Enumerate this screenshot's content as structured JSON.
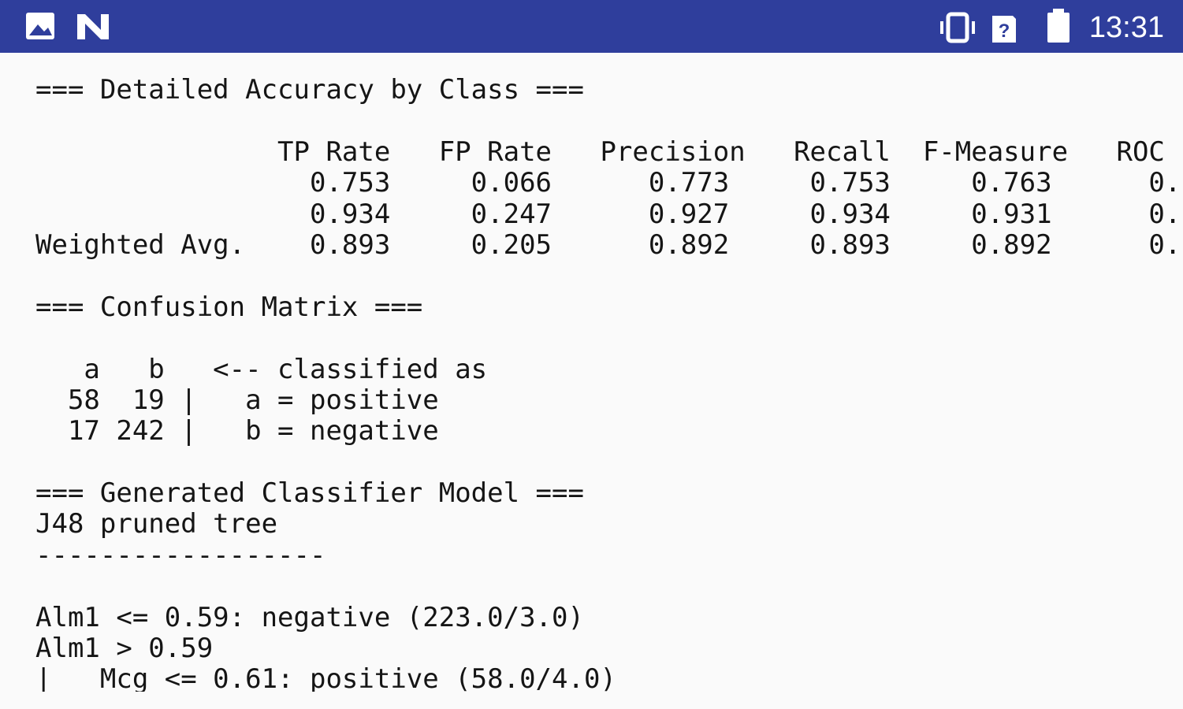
{
  "status_bar": {
    "time": "13:31"
  },
  "accuracy": {
    "title": "=== Detailed Accuracy by Class ===",
    "header": "               TP Rate   FP Rate   Precision   Recall  F-Measure   ROC",
    "rows": [
      "                 0.753     0.066      0.773     0.753     0.763      0.",
      "                 0.934     0.247      0.927     0.934     0.931      0.",
      "Weighted Avg.    0.893     0.205      0.892     0.893     0.892      0."
    ]
  },
  "confusion": {
    "title": "=== Confusion Matrix ===",
    "header": "   a   b   <-- classified as",
    "rows": [
      "  58  19 |   a = positive",
      "  17 242 |   b = negative"
    ]
  },
  "model": {
    "title": "=== Generated Classifier Model ===",
    "name": "J48 pruned tree",
    "separator": "------------------",
    "rules": [
      "Alm1 <= 0.59: negative (223.0/3.0)",
      "Alm1 > 0.59",
      "|   Mcg <= 0.61: positive (58.0/4.0)"
    ]
  }
}
